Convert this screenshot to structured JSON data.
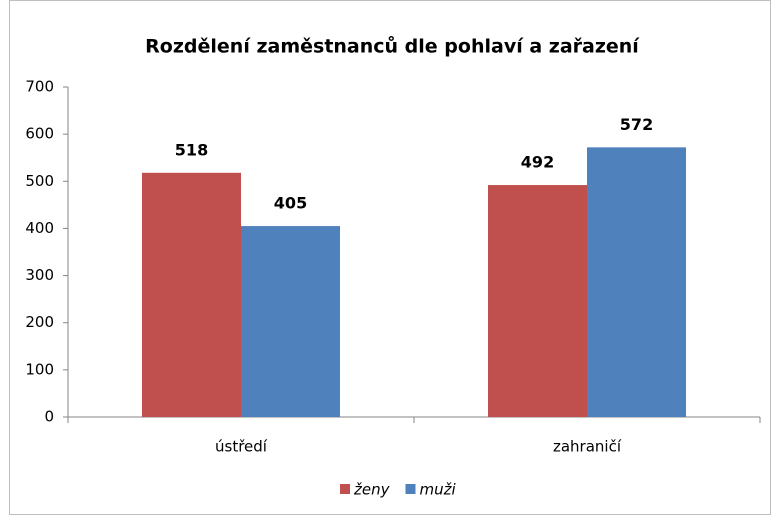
{
  "chart_data": {
    "type": "bar",
    "title": "Rozdělení zaměstnanců dle pohlaví a zařazení",
    "categories": [
      "ústředí",
      "zahraničí"
    ],
    "series": [
      {
        "name": "ženy",
        "color": "#c0504d",
        "values": [
          518,
          492
        ]
      },
      {
        "name": "muži",
        "color": "#4f81bd",
        "values": [
          405,
          572
        ]
      }
    ],
    "ylim": [
      0,
      700
    ],
    "yticks": [
      0,
      100,
      200,
      300,
      400,
      500,
      600,
      700
    ],
    "grid": false,
    "legend": "bottom"
  }
}
